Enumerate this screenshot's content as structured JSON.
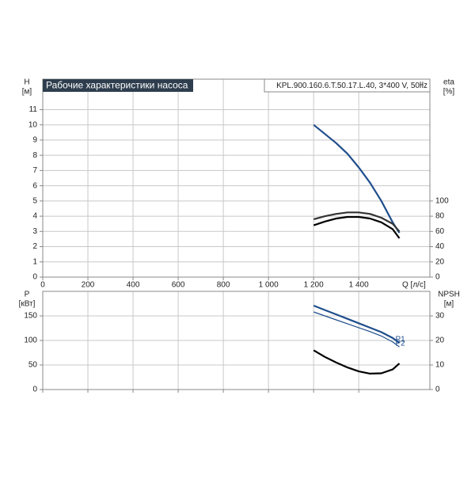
{
  "chart_data": [
    {
      "type": "line",
      "title": "Рабочие характеристики насоса",
      "subtitle": "KPL.900.160.6.T.50.17.L.40, 3*400 V, 50㎐",
      "y_label": "H",
      "y_unit": "[м]",
      "y2_label": "eta",
      "y2_unit": "[%]",
      "x_label": "Q [л/с]",
      "xlim": [
        0,
        1715
      ],
      "xticks": [
        0,
        200,
        400,
        600,
        800,
        {
          "value": 1000,
          "label": "1 000"
        },
        {
          "value": 1200,
          "label": "1 200"
        },
        {
          "value": 1400,
          "label": "1 400"
        }
      ],
      "ylim": [
        0,
        13
      ],
      "yticks": [
        0,
        1,
        2,
        3,
        4,
        5,
        6,
        7,
        8,
        9,
        10,
        11
      ],
      "y2lim": [
        0,
        260
      ],
      "y2ticks": [
        0,
        20,
        40,
        60,
        80,
        100
      ],
      "grid": true,
      "show_xtick_labels": true,
      "series": [
        {
          "color": "#1f4e8c",
          "x": [
            1200,
            1250,
            1300,
            1350,
            1400,
            1450,
            1500,
            1550,
            1580
          ],
          "values": [
            10,
            9.4,
            8.8,
            8.1,
            7.2,
            6.2,
            5.0,
            3.6,
            2.9
          ]
        },
        {
          "axis": "y2",
          "color": "#000000",
          "x": [
            1200,
            1250,
            1300,
            1350,
            1400,
            1450,
            1500,
            1550,
            1580
          ],
          "values": [
            68,
            73,
            77,
            79,
            79,
            77,
            72,
            63,
            51
          ]
        },
        {
          "axis": "y2",
          "color": "#333333",
          "x": [
            1200,
            1250,
            1300,
            1350,
            1400,
            1450,
            1500,
            1550,
            1580
          ],
          "values": [
            76,
            80,
            83,
            85,
            85,
            83,
            78,
            70,
            60
          ]
        }
      ]
    },
    {
      "type": "line",
      "y_label": "P",
      "y_unit": "[кВт]",
      "y2_label": "NPSH",
      "y2_unit": "[м]",
      "xlim": [
        0,
        1715
      ],
      "xticks": [
        0,
        200,
        400,
        600,
        800,
        1000,
        1200,
        1400
      ],
      "ylim": [
        0,
        200
      ],
      "yticks": [
        0,
        50,
        100,
        150
      ],
      "y2lim": [
        0,
        40
      ],
      "y2ticks": [
        0,
        10,
        20,
        30
      ],
      "grid": true,
      "show_xtick_labels": false,
      "series": [
        {
          "name": "P1",
          "color": "#1f4e8c",
          "x": [
            1200,
            1250,
            1300,
            1350,
            1400,
            1450,
            1500,
            1550,
            1580
          ],
          "values": [
            171,
            162,
            153,
            144,
            135,
            126,
            117,
            105,
            95
          ]
        },
        {
          "name": "P2",
          "color": "#1f4e8c",
          "x": [
            1200,
            1250,
            1300,
            1350,
            1400,
            1450,
            1500,
            1550,
            1580
          ],
          "values": [
            158,
            150,
            142,
            134,
            126,
            118,
            109,
            97,
            87
          ]
        },
        {
          "axis": "y2",
          "color": "#000000",
          "x": [
            1200,
            1250,
            1300,
            1350,
            1400,
            1450,
            1500,
            1550,
            1580
          ],
          "values": [
            16,
            13.3,
            11,
            9,
            7.4,
            6.5,
            6.6,
            8.2,
            10.6
          ]
        }
      ]
    }
  ]
}
